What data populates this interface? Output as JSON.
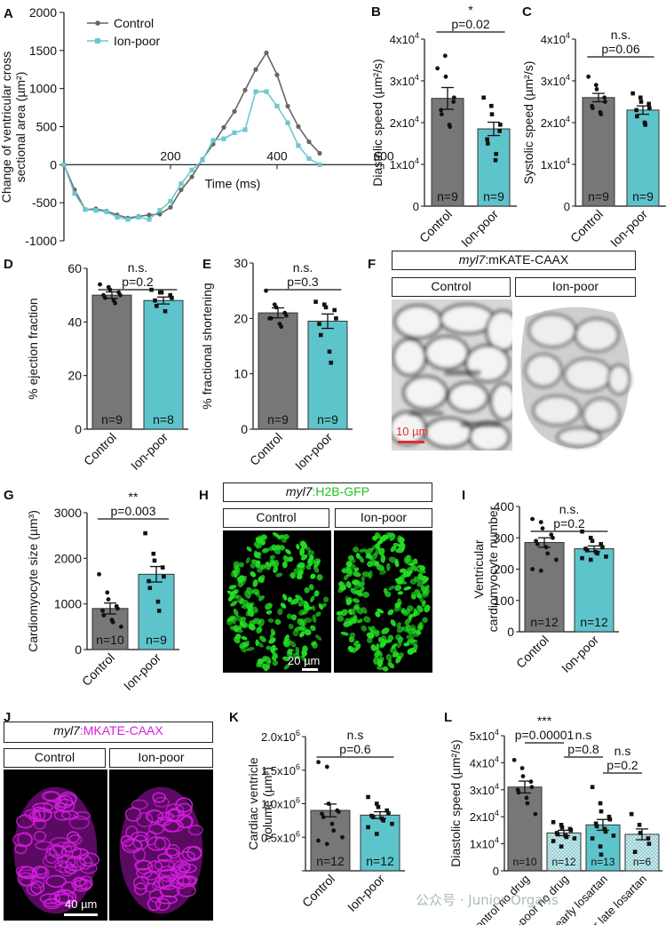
{
  "colors": {
    "control": "#777777",
    "ionpoor": "#5ec4cc",
    "control_line": "#666666",
    "ionpoor_line": "#6cc8d0",
    "mkate": "#d41ee0",
    "gfp": "#22e022",
    "star": "#e03030"
  },
  "panel_letters": [
    "A",
    "B",
    "C",
    "D",
    "E",
    "F",
    "G",
    "H",
    "I",
    "J",
    "K",
    "L"
  ],
  "chart_data": [
    {
      "id": "A",
      "type": "line",
      "ylabel_lines": [
        "Change of ventricular cross",
        "sectional area (µm²)"
      ],
      "xlabel": "Time (ms)",
      "xlim": [
        0,
        600
      ],
      "ylim": [
        -1000,
        2000
      ],
      "xticks": [
        "200",
        "400",
        "600"
      ],
      "yticks": [
        "-1000",
        "-500",
        "0",
        "500",
        "1000",
        "1500",
        "2000"
      ],
      "legend_position": "top-middle",
      "series": [
        {
          "name": "Control",
          "points": [
            [
              0,
              0
            ],
            [
              20,
              -330
            ],
            [
              40,
              -590
            ],
            [
              60,
              -580
            ],
            [
              80,
              -610
            ],
            [
              100,
              -660
            ],
            [
              120,
              -700
            ],
            [
              140,
              -680
            ],
            [
              160,
              -660
            ],
            [
              180,
              -650
            ],
            [
              200,
              -560
            ],
            [
              220,
              -330
            ],
            [
              240,
              -160
            ],
            [
              260,
              70
            ],
            [
              280,
              270
            ],
            [
              300,
              490
            ],
            [
              320,
              700
            ],
            [
              340,
              980
            ],
            [
              360,
              1250
            ],
            [
              380,
              1470
            ],
            [
              400,
              1180
            ],
            [
              420,
              770
            ],
            [
              440,
              500
            ],
            [
              460,
              300
            ],
            [
              480,
              150
            ]
          ]
        },
        {
          "name": "Ion-poor",
          "points": [
            [
              0,
              0
            ],
            [
              20,
              -380
            ],
            [
              40,
              -590
            ],
            [
              60,
              -600
            ],
            [
              80,
              -620
            ],
            [
              100,
              -690
            ],
            [
              120,
              -720
            ],
            [
              140,
              -690
            ],
            [
              160,
              -720
            ],
            [
              180,
              -600
            ],
            [
              200,
              -480
            ],
            [
              220,
              -250
            ],
            [
              240,
              -70
            ],
            [
              260,
              60
            ],
            [
              280,
              320
            ],
            [
              300,
              340
            ],
            [
              320,
              420
            ],
            [
              340,
              460
            ],
            [
              360,
              960
            ],
            [
              380,
              960
            ],
            [
              400,
              770
            ],
            [
              420,
              550
            ],
            [
              440,
              250
            ],
            [
              460,
              80
            ],
            [
              480,
              0
            ]
          ]
        }
      ]
    },
    {
      "id": "B",
      "type": "bar",
      "ylabel": "Diastolic speed (µm²/s)",
      "ylim": [
        0,
        40000
      ],
      "ytick_prefix": [
        "",
        "1x10",
        "2x10",
        "3x10",
        "4x10"
      ],
      "ytick_exp": "4",
      "ytick_zero": "0",
      "categories": [
        "Control",
        "Ion-poor"
      ],
      "values": [
        25800,
        18500
      ],
      "errors": [
        2600,
        1600
      ],
      "n_labels": [
        "n=9",
        "n=9"
      ],
      "points": [
        [
          33000,
          36000,
          31000,
          25000,
          26000,
          23000,
          22000,
          19500,
          19000
        ],
        [
          26000,
          24000,
          22000,
          18000,
          19500,
          16000,
          15000,
          11000,
          12500
        ]
      ],
      "significance": {
        "stars": "*",
        "pvalue": "p=0.02",
        "from": 0,
        "to": 1
      }
    },
    {
      "id": "C",
      "type": "bar",
      "ylabel": "Systolic speed (µm²/s)",
      "ylim": [
        0,
        40000
      ],
      "ytick_prefix": [
        "",
        "1x10",
        "2x10",
        "3x10",
        "4x10"
      ],
      "ytick_exp": "4",
      "ytick_zero": "0",
      "categories": [
        "Control",
        "Ion-poor"
      ],
      "values": [
        26000,
        23000
      ],
      "errors": [
        1000,
        1000
      ],
      "n_labels": [
        "n=9",
        "n=9"
      ],
      "points": [
        [
          31000,
          29000,
          28000,
          26000,
          25000,
          24000,
          23500,
          22500,
          22000
        ],
        [
          27000,
          26000,
          25000,
          24500,
          23500,
          23000,
          21500,
          20000,
          19500
        ]
      ],
      "significance": {
        "stars": "n.s.",
        "pvalue": "p=0.06",
        "from": 0,
        "to": 1
      }
    },
    {
      "id": "D",
      "type": "bar",
      "ylabel": "% ejection fraction",
      "ylim": [
        0,
        60
      ],
      "yticks": [
        "0",
        "20",
        "40",
        "60"
      ],
      "categories": [
        "Control",
        "Ion-poor"
      ],
      "values": [
        50,
        48
      ],
      "errors": [
        1.2,
        1.3
      ],
      "n_labels": [
        "n=9",
        "n=8"
      ],
      "points": [
        [
          54,
          53,
          52,
          51,
          50,
          50,
          49,
          48,
          47
        ],
        [
          52,
          51,
          51,
          50,
          49,
          48,
          46,
          44
        ]
      ],
      "significance": {
        "stars": "n.s.",
        "pvalue": "p=0.2",
        "from": 0,
        "to": 1
      }
    },
    {
      "id": "E",
      "type": "bar",
      "ylabel": "% fractional shortening",
      "ylim": [
        0,
        30
      ],
      "yticks": [
        "0",
        "10",
        "20",
        "30"
      ],
      "categories": [
        "Control",
        "Ion-poor"
      ],
      "values": [
        21,
        19.5
      ],
      "errors": [
        0.9,
        1.3
      ],
      "n_labels": [
        "n=9",
        "n=9"
      ],
      "points": [
        [
          25,
          22.5,
          22,
          21,
          20.5,
          20,
          20,
          19,
          18.5
        ],
        [
          23,
          22.5,
          22,
          21.5,
          20,
          19,
          17,
          14,
          12
        ]
      ],
      "significance": {
        "stars": "n.s.",
        "pvalue": "p=0.3",
        "from": 0,
        "to": 1
      }
    },
    {
      "id": "G",
      "type": "bar",
      "ylabel": "Cardiomyocyte size (µm³)",
      "ylim": [
        0,
        3000
      ],
      "yticks": [
        "0",
        "1000",
        "2000",
        "3000"
      ],
      "categories": [
        "Control",
        "Ion-poor"
      ],
      "values": [
        900,
        1650
      ],
      "errors": [
        120,
        170
      ],
      "n_labels": [
        "n=10",
        "n=9"
      ],
      "points": [
        [
          1650,
          1250,
          1100,
          950,
          900,
          850,
          750,
          650,
          600,
          500
        ],
        [
          2550,
          2100,
          1950,
          1800,
          1600,
          1500,
          1350,
          1050,
          850
        ]
      ],
      "significance": {
        "stars": "**",
        "pvalue": "p=0.003",
        "from": 0,
        "to": 1
      }
    },
    {
      "id": "I",
      "type": "bar",
      "ylabel_lines": [
        "Ventricular",
        "cardiomyocyte number"
      ],
      "ylim": [
        0,
        400
      ],
      "yticks": [
        "0",
        "100",
        "200",
        "300",
        "400"
      ],
      "categories": [
        "Control",
        "Ion-poor"
      ],
      "values": [
        285,
        265
      ],
      "errors": [
        15,
        9
      ],
      "n_labels": [
        "n=12",
        "n=12"
      ],
      "points": [
        [
          360,
          350,
          330,
          310,
          300,
          290,
          280,
          270,
          250,
          230,
          200,
          195
        ],
        [
          320,
          300,
          290,
          280,
          270,
          265,
          260,
          255,
          250,
          240,
          235,
          230
        ]
      ],
      "significance": {
        "stars": "n.s.",
        "pvalue": "p=0.2",
        "from": 0,
        "to": 1
      }
    },
    {
      "id": "K",
      "type": "bar",
      "ylabel_lines": [
        "Cardiac ventricle",
        "volume (µm³)"
      ],
      "ylim": [
        0,
        2000000
      ],
      "ytick_prefix": [
        "",
        "0.5x10",
        "1.0x10",
        "1.5x10",
        "2.0x10"
      ],
      "ytick_exp": "6",
      "ytick_zero": "",
      "categories": [
        "Control",
        "Ion-poor"
      ],
      "values": [
        900000,
        830000
      ],
      "errors": [
        95000,
        50000
      ],
      "n_labels": [
        "n=12",
        "n=12"
      ],
      "points": [
        [
          1620000,
          1550000,
          1000000,
          900000,
          880000,
          850000,
          800000,
          700000,
          600000,
          500000,
          450000,
          400000
        ],
        [
          1100000,
          1000000,
          950000,
          900000,
          860000,
          820000,
          800000,
          780000,
          750000,
          700000,
          650000,
          550000
        ]
      ],
      "significance": {
        "stars": "n.s",
        "pvalue": "p=0.6",
        "from": 0,
        "to": 1
      }
    },
    {
      "id": "L",
      "type": "bar",
      "ylabel": "Diastolic speed (µm²/s)",
      "ylim": [
        0,
        50000
      ],
      "ytick_prefix": [
        "",
        "1x10",
        "2x10",
        "3x10",
        "4x10",
        "5x10"
      ],
      "ytick_exp": "4",
      "ytick_zero": "0",
      "categories": [
        "Control no drug",
        "Ion-poor no drug",
        "Ion-poor early losartan",
        "Ion-poor late losartan"
      ],
      "values": [
        31000,
        14000,
        17000,
        13500
      ],
      "errors": [
        2200,
        1000,
        2000,
        2000
      ],
      "n_labels": [
        "n=10",
        "n=12",
        "n=13",
        "n=6"
      ],
      "points": [
        [
          41000,
          38000,
          35000,
          33000,
          31000,
          30000,
          29000,
          27000,
          25000,
          21000
        ],
        [
          18000,
          17000,
          16000,
          15500,
          15000,
          14000,
          13500,
          13000,
          12500,
          12000,
          11000,
          9000
        ],
        [
          31000,
          25000,
          22000,
          20000,
          19000,
          17500,
          16500,
          15500,
          14500,
          13000,
          12000,
          9000,
          6000
        ],
        [
          21000,
          17000,
          14000,
          12000,
          10000,
          7000
        ]
      ],
      "significance_list": [
        {
          "stars": "***",
          "pvalue": "p=0.00001",
          "from": 0,
          "to": 1
        },
        {
          "stars": "n.s",
          "pvalue": "p=0.8",
          "from": 1,
          "to": 2
        },
        {
          "stars": "n.s",
          "pvalue": "p=0.2",
          "from": 2,
          "to": 3
        }
      ]
    }
  ],
  "images": {
    "F": {
      "header": "myl7:mKATE-CAAX",
      "header_italic": "myl7",
      "header_rest": ":mKATE-CAAX",
      "cols": [
        "Control",
        "Ion-poor"
      ],
      "scale": "10 µm"
    },
    "H": {
      "header_italic": "myl7",
      "header_rest": ":H2B-GFP",
      "cols": [
        "Control",
        "Ion-poor"
      ],
      "scale": "20 µm"
    },
    "J": {
      "header_italic": "myl7",
      "header_rest": ":MKATE-CAAX",
      "cols": [
        "Control",
        "Ion-poor"
      ],
      "scale": "40 µm"
    }
  },
  "watermark": "公众号 · Junior Organs"
}
